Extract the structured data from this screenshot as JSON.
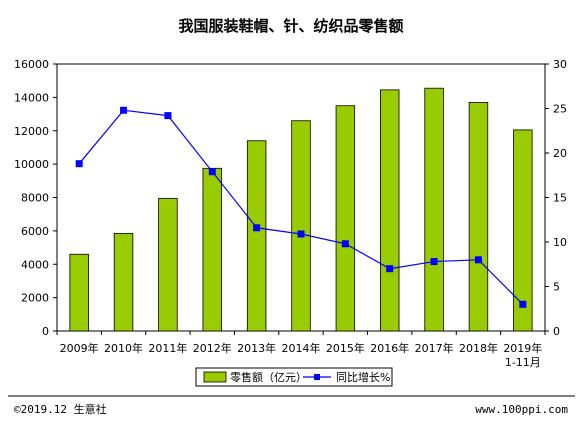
{
  "chart_data": {
    "type": "bar",
    "title": "我国服装鞋帽、针、纺织品零售额",
    "categories": [
      "2009年",
      "2010年",
      "2011年",
      "2012年",
      "2013年",
      "2014年",
      "2015年",
      "2016年",
      "2017年",
      "2018年",
      "2019年"
    ],
    "category_sublabels": [
      "",
      "",
      "",
      "",
      "",
      "",
      "",
      "",
      "",
      "",
      "1-11月"
    ],
    "series": [
      {
        "name": "零售额（亿元）",
        "kind": "bar",
        "axis": "left",
        "color": "#99cc00",
        "values": [
          4600,
          5850,
          7950,
          9750,
          11400,
          12600,
          13500,
          14450,
          14550,
          13700,
          12050
        ]
      },
      {
        "name": "同比增长%",
        "kind": "line",
        "axis": "right",
        "color": "#0000ff",
        "values": [
          18.8,
          24.8,
          24.2,
          17.9,
          11.6,
          10.9,
          9.8,
          7.0,
          7.8,
          8.0,
          3.0
        ]
      }
    ],
    "ylim_left": [
      0,
      16000
    ],
    "yticks_left": [
      0,
      2000,
      4000,
      6000,
      8000,
      10000,
      12000,
      14000,
      16000
    ],
    "ylim_right": [
      0,
      30
    ],
    "yticks_right": [
      0,
      5,
      10,
      15,
      20,
      25,
      30
    ],
    "xlabel": "",
    "ylabel": "",
    "grid": false,
    "legend_position": "bottom"
  },
  "footer": {
    "left": "©2019.12 生意社",
    "right": "www.100ppi.com"
  }
}
